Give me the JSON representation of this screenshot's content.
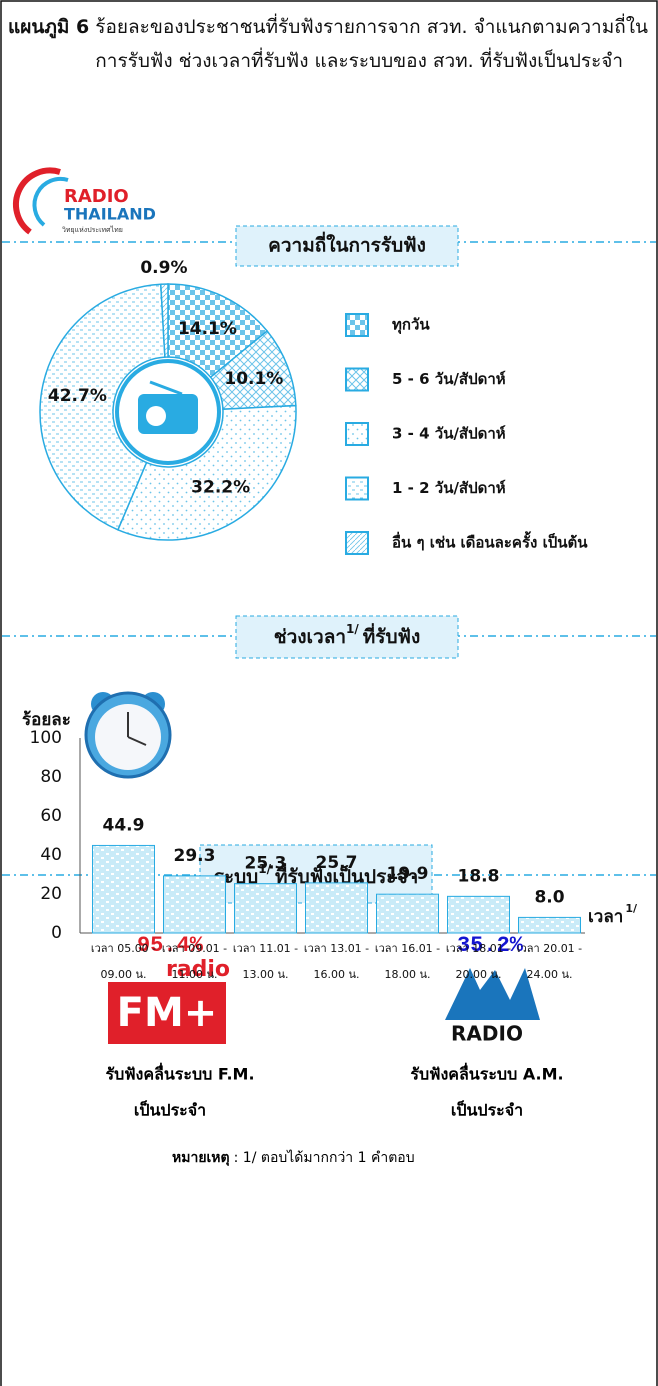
{
  "header": {
    "label": "แผนภูมิ 6",
    "title": "ร้อยละของประชาชนที่รับฟังรายการจาก สวท. จำแนกตามความถี่ในการรับฟัง ช่วงเวลาที่รับฟัง และระบบของ สวท. ที่รับฟังเป็นประจำ"
  },
  "logo": {
    "line1": "RADIO",
    "line2": "THAILAND",
    "line3": "วิทยุแห่งประเทศไทย"
  },
  "chart_data": [
    {
      "type": "pie",
      "title": "ความถี่ในการรับฟัง",
      "categories": [
        "ทุกวัน",
        "5 - 6 วัน/สัปดาห์",
        "3 - 4 วัน/สัปดาห์",
        "1 - 2 วัน/สัปดาห์",
        "อื่น ๆ เช่น เดือนละครั้ง เป็นต้น"
      ],
      "values": [
        14.1,
        10.1,
        32.2,
        42.7,
        0.9
      ],
      "value_labels": [
        "14.1%",
        "10.1%",
        "32.2%",
        "42.7%",
        "0.9%"
      ],
      "color": "#29abe2",
      "legend": "right"
    },
    {
      "type": "bar",
      "title": "ช่วงเวลา",
      "title_note": "1/",
      "title_suffix": "ที่รับฟัง",
      "y_label": "ร้อยละ",
      "x_label": "เวลา",
      "x_label_note": "1/",
      "categories": [
        [
          "เวลา 05.00 -",
          "09.00 น."
        ],
        [
          "เวลา 09.01 -",
          "11.00 น."
        ],
        [
          "เวลา 11.01 -",
          "13.00 น."
        ],
        [
          "เวลา 13.01 -",
          "16.00 น."
        ],
        [
          "เวลา 16.01 -",
          "18.00 น."
        ],
        [
          "เวลา 18.01 -",
          "20.00 น."
        ],
        [
          "เวลา 20.01 -",
          "24.00 น."
        ]
      ],
      "values": [
        44.9,
        29.3,
        25.3,
        25.7,
        19.9,
        18.8,
        8.0
      ],
      "value_labels": [
        "44.9",
        "29.3",
        "25.3",
        "25.7",
        "19.9",
        "18.8",
        "8.0"
      ],
      "ylim": [
        0,
        100
      ],
      "yticks": [
        0,
        20,
        40,
        60,
        80,
        100
      ],
      "color": "#29abe2",
      "grid": false
    }
  ],
  "systems": {
    "title": "ระบบ",
    "title_note": "1/",
    "title_suffix": "ที่รับฟังเป็นประจำ",
    "fm": {
      "value": "95.4%",
      "logo_top": "radio",
      "logo": "FM+",
      "caption1": "รับฟังคลื่นระบบ F.M.",
      "caption2": "เป็นประจำ"
    },
    "am": {
      "value": "35.2%",
      "logo": "RADIO",
      "caption1": "รับฟังคลื่นระบบ A.M.",
      "caption2": "เป็นประจำ"
    }
  },
  "note": {
    "label": "หมายเหตุ",
    "text": ": 1/ ตอบได้มากกว่า 1 คำตอบ"
  }
}
